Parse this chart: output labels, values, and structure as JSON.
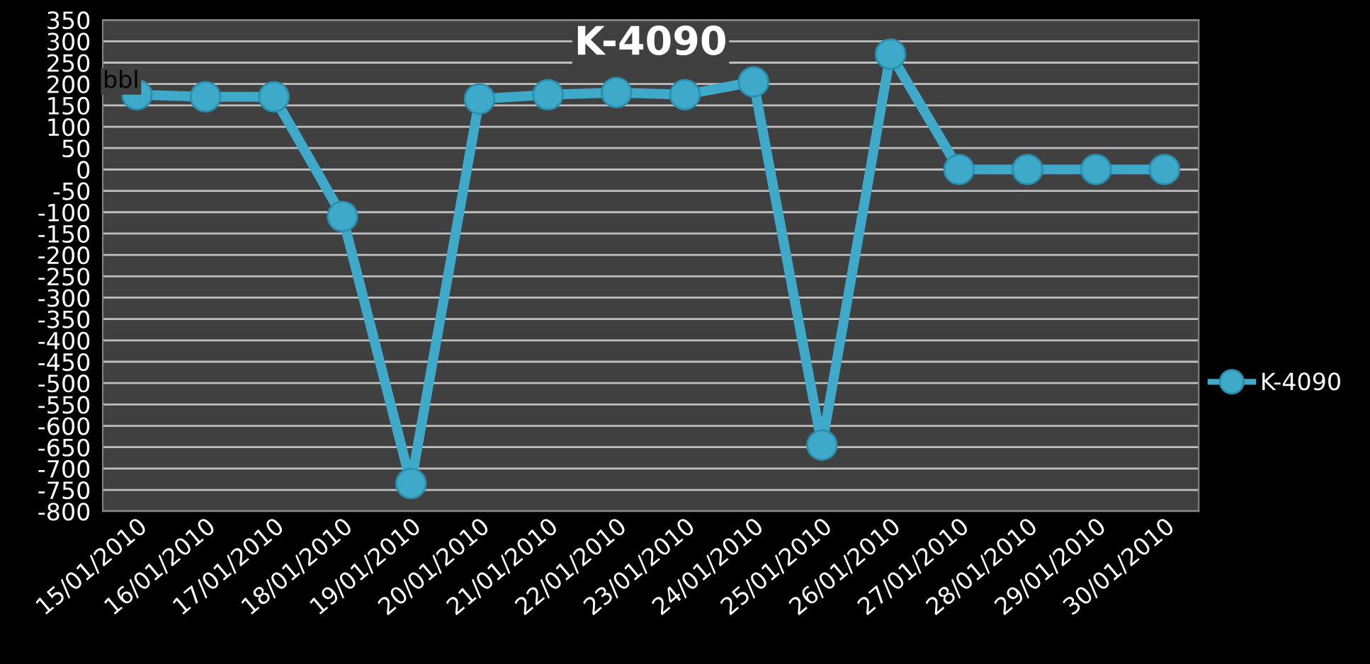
{
  "chart_data": {
    "type": "line",
    "title": "K-4090",
    "ylabel": "bbl",
    "categories": [
      "15/01/2010",
      "16/01/2010",
      "17/01/2010",
      "18/01/2010",
      "19/01/2010",
      "20/01/2010",
      "21/01/2010",
      "22/01/2010",
      "23/01/2010",
      "24/01/2010",
      "25/01/2010",
      "26/01/2010",
      "27/01/2010",
      "28/01/2010",
      "29/01/2010",
      "30/01/2010"
    ],
    "series": [
      {
        "name": "K-4090",
        "color": "#3fa9c9",
        "values": [
          175,
          170,
          170,
          -110,
          -735,
          165,
          175,
          180,
          175,
          205,
          -645,
          270,
          0,
          0,
          0,
          0
        ]
      }
    ],
    "ylim": [
      -800,
      350
    ],
    "yticks": [
      -800,
      -750,
      -700,
      -650,
      -600,
      -550,
      -500,
      -450,
      -400,
      -350,
      -300,
      -250,
      -200,
      -150,
      -100,
      -50,
      0,
      50,
      100,
      150,
      200,
      250,
      300,
      350
    ],
    "grid": "y",
    "legend": "right",
    "marker": "circle",
    "line_style": "solid"
  }
}
